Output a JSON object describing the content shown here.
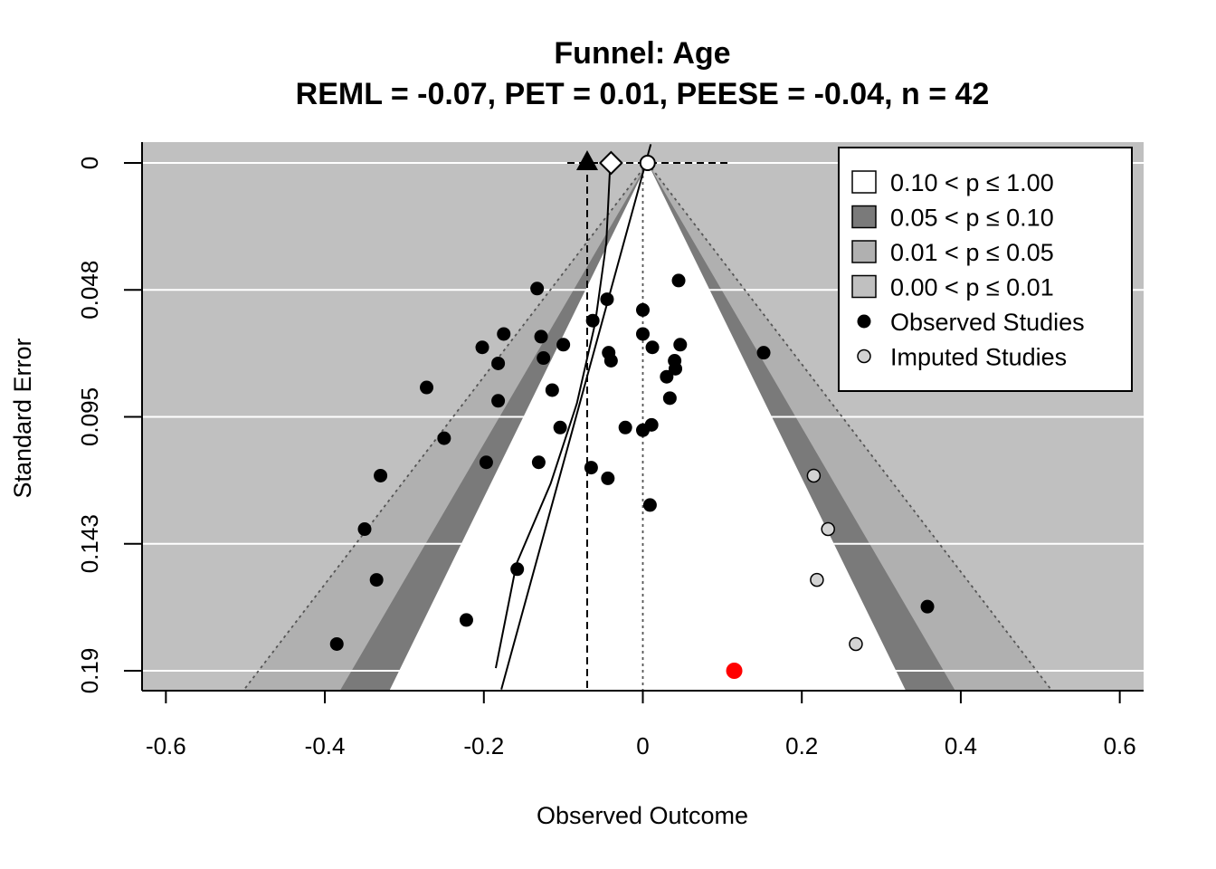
{
  "chart_data": {
    "type": "scatter",
    "subtype": "contour-enhanced funnel plot",
    "title": "Funnel: Age",
    "subtitle": "REML = -0.07,  PET = 0.01,  PEESE = -0.04,  n = 42",
    "xlabel": "Observed Outcome",
    "ylabel": "Standard Error",
    "xlim": [
      -0.63,
      0.63
    ],
    "ylim": [
      0,
      0.1975
    ],
    "y_reversed": true,
    "x_ticks": [
      -0.6,
      -0.4,
      -0.2,
      0,
      0.2,
      0.4,
      0.6
    ],
    "x_tick_labels": [
      "-0.6",
      "-0.4",
      "-0.2",
      "0",
      "0.2",
      "0.4",
      "0.6"
    ],
    "y_ticks": [
      0,
      0.0475,
      0.095,
      0.1425,
      0.19
    ],
    "y_tick_labels": [
      "0",
      "0.048",
      "0.095",
      "0.143",
      "0.19"
    ],
    "estimates": {
      "reml": -0.07,
      "pet": 0.01,
      "peese": -0.04,
      "n": 42
    },
    "funnel_center": 0.006,
    "contour_levels": [
      {
        "label": "0.10 < p ≤ 1.00",
        "z": 1.645,
        "color": "#ffffff"
      },
      {
        "label": "0.05 < p ≤ 0.10",
        "z": 1.96,
        "color": "#7a7a7a"
      },
      {
        "label": "0.01 < p ≤ 0.05",
        "z": 2.576,
        "color": "#b0b0b0"
      },
      {
        "label": "0.00 < p ≤ 0.01",
        "z": null,
        "color": "#c0c0c0"
      }
    ],
    "legend": {
      "placement": "top-right",
      "entries": [
        {
          "label": "0.10 < p ≤ 1.00",
          "kind": "box",
          "color": "#ffffff"
        },
        {
          "label": "0.05 < p ≤ 0.10",
          "kind": "box",
          "color": "#7a7a7a"
        },
        {
          "label": "0.01 < p ≤ 0.05",
          "kind": "box",
          "color": "#b0b0b0"
        },
        {
          "label": "0.00 < p ≤ 0.01",
          "kind": "box",
          "color": "#c0c0c0"
        },
        {
          "label": "Observed Studies",
          "kind": "point",
          "color": "#000000"
        },
        {
          "label": "Imputed Studies",
          "kind": "point",
          "color": "#d3d3d3"
        }
      ]
    },
    "series": [
      {
        "name": "Observed Studies",
        "color": "#000000",
        "points": [
          [
            -0.133,
            0.047
          ],
          [
            -0.045,
            0.051
          ],
          [
            0.0,
            0.055
          ],
          [
            0.045,
            0.044
          ],
          [
            -0.063,
            0.059
          ],
          [
            -0.175,
            0.064
          ],
          [
            -0.128,
            0.065
          ],
          [
            -0.202,
            0.069
          ],
          [
            -0.1,
            0.068
          ],
          [
            0.0,
            0.064
          ],
          [
            0.012,
            0.069
          ],
          [
            0.047,
            0.068
          ],
          [
            -0.043,
            0.071
          ],
          [
            -0.125,
            0.073
          ],
          [
            -0.182,
            0.075
          ],
          [
            -0.04,
            0.074
          ],
          [
            0.04,
            0.074
          ],
          [
            0.041,
            0.077
          ],
          [
            0.03,
            0.08
          ],
          [
            -0.272,
            0.084
          ],
          [
            -0.114,
            0.085
          ],
          [
            -0.182,
            0.089
          ],
          [
            0.034,
            0.088
          ],
          [
            -0.022,
            0.099
          ],
          [
            0.011,
            0.098
          ],
          [
            0.0,
            0.1
          ],
          [
            -0.104,
            0.099
          ],
          [
            -0.25,
            0.103
          ],
          [
            -0.197,
            0.112
          ],
          [
            -0.131,
            0.112
          ],
          [
            -0.065,
            0.114
          ],
          [
            -0.044,
            0.118
          ],
          [
            -0.33,
            0.117
          ],
          [
            0.009,
            0.128
          ],
          [
            -0.35,
            0.137
          ],
          [
            -0.158,
            0.152
          ],
          [
            -0.335,
            0.156
          ],
          [
            -0.222,
            0.171
          ],
          [
            -0.385,
            0.18
          ],
          [
            0.152,
            0.071
          ],
          [
            0.358,
            0.166
          ]
        ]
      },
      {
        "name": "Imputed Studies",
        "color": "#d3d3d3",
        "points": [
          [
            0.215,
            0.117
          ],
          [
            0.233,
            0.137
          ],
          [
            0.219,
            0.156
          ],
          [
            0.268,
            0.18
          ]
        ]
      },
      {
        "name": "Highlighted Study",
        "color": "#ff0000",
        "points": [
          [
            0.115,
            0.19
          ]
        ]
      }
    ],
    "regression_lines": {
      "pet": [
        [
          0.01,
          -0.007
        ],
        [
          -0.178,
          0.197
        ]
      ],
      "peese": [
        [
          -0.041,
          0.0
        ],
        [
          -0.046,
          0.03
        ],
        [
          -0.06,
          0.06
        ],
        [
          -0.083,
          0.09
        ],
        [
          -0.116,
          0.12
        ],
        [
          -0.159,
          0.15
        ],
        [
          -0.185,
          0.189
        ]
      ]
    }
  }
}
